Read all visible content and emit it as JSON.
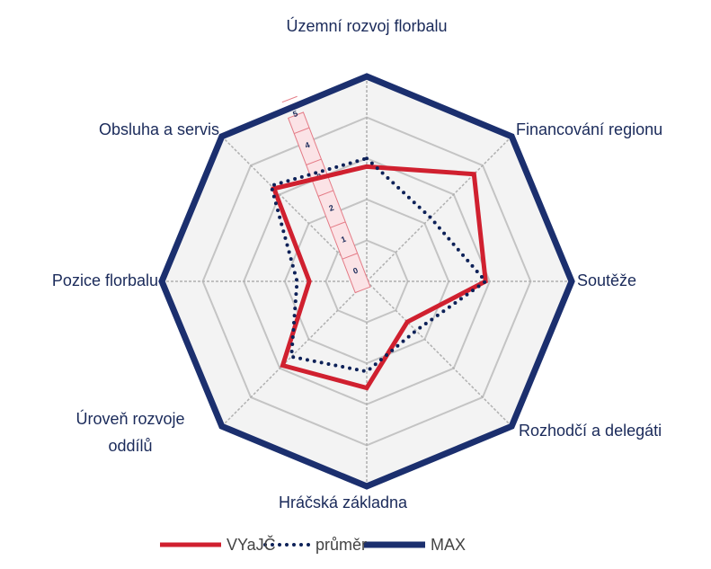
{
  "chart_data": {
    "type": "radar",
    "categories": [
      "Územní rozvoj florbalu",
      "Financování regionu",
      "Soutěže",
      "Rozhodčí a delegáti",
      "Hráčská základna",
      "Úroveň rozvoje oddílů",
      "Pozice florbalu",
      "Obsluha a servis"
    ],
    "series": [
      {
        "name": "VYaJČ",
        "color": "#d0202f",
        "values": [
          2.8,
          3.7,
          2.9,
          1.4,
          2.6,
          2.9,
          1.4,
          3.2
        ]
      },
      {
        "name": "průměr",
        "color": "#0d2158",
        "values": [
          3.0,
          2.2,
          2.9,
          1.7,
          2.2,
          2.6,
          1.7,
          3.3
        ]
      },
      {
        "name": "MAX",
        "color": "#1b2f6e",
        "values": [
          5,
          5,
          5,
          5,
          5,
          5,
          5,
          5
        ]
      }
    ],
    "ylim": [
      0,
      5
    ],
    "yticks": [
      0,
      1,
      2,
      3,
      4,
      5
    ],
    "grid": true,
    "legend": "bottom"
  }
}
